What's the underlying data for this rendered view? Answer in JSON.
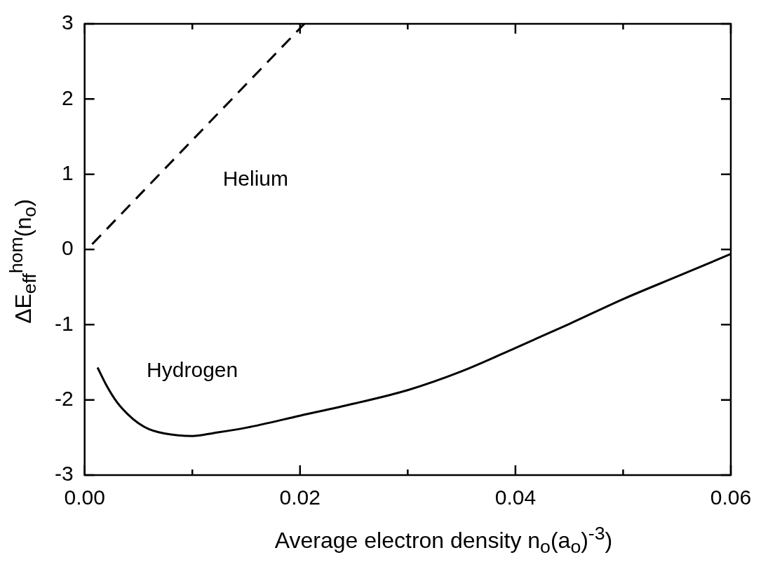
{
  "chart_data": {
    "type": "line",
    "xlabel": "Average electron density n$_{o}$(a$_{o}$)$^{-3}$)",
    "ylabel": "ΔE$_{eff}$$^{hom}$(n$_{o}$)",
    "xlim": [
      0,
      0.06
    ],
    "ylim": [
      -3,
      3
    ],
    "xticks": [
      {
        "value": 0,
        "label": "0.00"
      },
      {
        "value": 0.01,
        "label": null
      },
      {
        "value": 0.02,
        "label": "0.02"
      },
      {
        "value": 0.03,
        "label": null
      },
      {
        "value": 0.04,
        "label": "0.04"
      },
      {
        "value": 0.05,
        "label": null
      },
      {
        "value": 0.06,
        "label": "0.06"
      }
    ],
    "yticks": [
      -3,
      -2,
      -1,
      0,
      1,
      2,
      3
    ],
    "marker": "none",
    "series": [
      {
        "name": "Helium",
        "color": "#000000",
        "line_style": "dashed",
        "x": [
          0.0007,
          0.0204
        ],
        "values": [
          0.07,
          3
        ]
      },
      {
        "name": "Hydrogen",
        "color": "#000000",
        "line_style": "solid",
        "x": [
          0.0012,
          0.002,
          0.003,
          0.004,
          0.005,
          0.006,
          0.008,
          0.01,
          0.012,
          0.015,
          0.02,
          0.025,
          0.03,
          0.035,
          0.04,
          0.045,
          0.05,
          0.055,
          0.06
        ],
        "values": [
          -1.57,
          -1.8,
          -2.03,
          -2.19,
          -2.31,
          -2.39,
          -2.46,
          -2.48,
          -2.44,
          -2.37,
          -2.21,
          -2.05,
          -1.87,
          -1.62,
          -1.31,
          -0.99,
          -0.66,
          -0.36,
          -0.06
        ]
      }
    ]
  }
}
